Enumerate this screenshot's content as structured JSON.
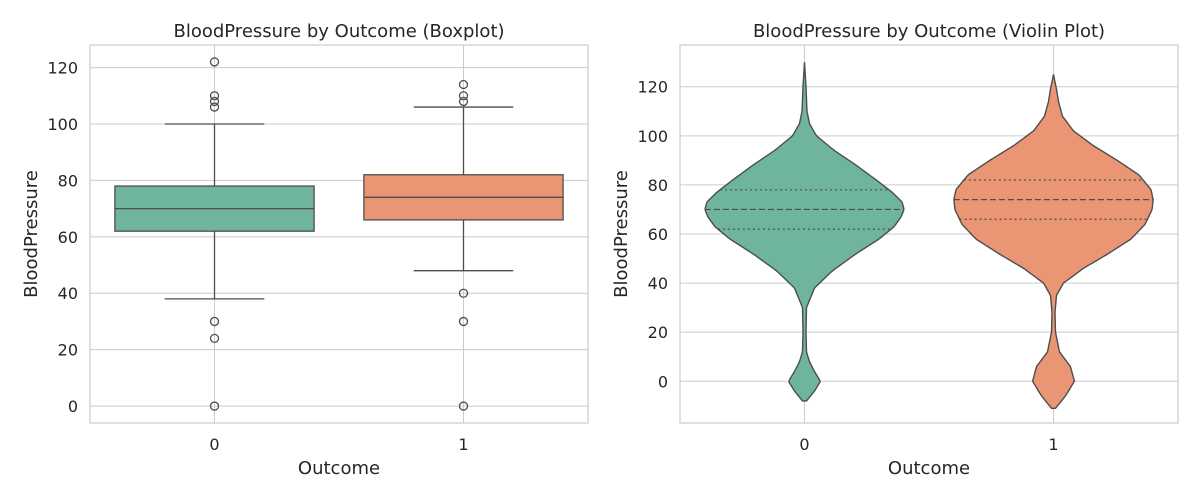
{
  "chart_data": [
    {
      "type": "box",
      "title": "BloodPressure by Outcome (Boxplot)",
      "xlabel": "Outcome",
      "ylabel": "BloodPressure",
      "categories": [
        "0",
        "1"
      ],
      "ylim": [
        -6,
        128
      ],
      "yticks": [
        0,
        20,
        40,
        60,
        80,
        100,
        120
      ],
      "grid": true,
      "colors": [
        "#6fb59e",
        "#ea9674"
      ],
      "boxes": [
        {
          "category": "0",
          "q1": 62,
          "median": 70,
          "q3": 78,
          "whisker_low": 38,
          "whisker_high": 100,
          "fliers": [
            122,
            110,
            108,
            106,
            30,
            24,
            0
          ]
        },
        {
          "category": "1",
          "q1": 66,
          "median": 74,
          "q3": 82,
          "whisker_low": 48,
          "whisker_high": 106,
          "fliers": [
            114,
            110,
            108,
            40,
            30,
            0
          ]
        }
      ]
    },
    {
      "type": "violin",
      "title": "BloodPressure by Outcome (Violin Plot)",
      "xlabel": "Outcome",
      "ylabel": "BloodPressure",
      "categories": [
        "0",
        "1"
      ],
      "ylim": [
        -17,
        137
      ],
      "yticks": [
        0,
        20,
        40,
        60,
        80,
        100,
        120
      ],
      "grid": true,
      "colors": [
        "#6fb59e",
        "#ea9674"
      ],
      "violins": [
        {
          "category": "0",
          "q1": 62,
          "median": 70,
          "q3": 78,
          "min": -8,
          "max": 130,
          "density": [
            [
              -8,
              0.02
            ],
            [
              -4,
              0.1
            ],
            [
              0,
              0.16
            ],
            [
              4,
              0.1
            ],
            [
              8,
              0.05
            ],
            [
              12,
              0.02
            ],
            [
              20,
              0.015
            ],
            [
              30,
              0.02
            ],
            [
              38,
              0.1
            ],
            [
              45,
              0.28
            ],
            [
              52,
              0.52
            ],
            [
              58,
              0.75
            ],
            [
              63,
              0.9
            ],
            [
              67,
              0.97
            ],
            [
              70,
              1.0
            ],
            [
              73,
              0.98
            ],
            [
              77,
              0.88
            ],
            [
              82,
              0.72
            ],
            [
              88,
              0.52
            ],
            [
              94,
              0.3
            ],
            [
              100,
              0.12
            ],
            [
              105,
              0.05
            ],
            [
              110,
              0.025
            ],
            [
              120,
              0.015
            ],
            [
              130,
              0.0
            ]
          ]
        },
        {
          "category": "1",
          "q1": 66,
          "median": 74,
          "q3": 82,
          "min": -11,
          "max": 125,
          "density": [
            [
              -11,
              0.02
            ],
            [
              -6,
              0.12
            ],
            [
              0,
              0.21
            ],
            [
              6,
              0.17
            ],
            [
              12,
              0.06
            ],
            [
              20,
              0.02
            ],
            [
              28,
              0.015
            ],
            [
              35,
              0.03
            ],
            [
              40,
              0.1
            ],
            [
              46,
              0.3
            ],
            [
              52,
              0.55
            ],
            [
              58,
              0.78
            ],
            [
              64,
              0.92
            ],
            [
              70,
              0.99
            ],
            [
              74,
              1.0
            ],
            [
              78,
              0.98
            ],
            [
              84,
              0.86
            ],
            [
              90,
              0.64
            ],
            [
              96,
              0.4
            ],
            [
              102,
              0.2
            ],
            [
              108,
              0.09
            ],
            [
              114,
              0.05
            ],
            [
              119,
              0.03
            ],
            [
              125,
              0.0
            ]
          ]
        }
      ]
    }
  ]
}
